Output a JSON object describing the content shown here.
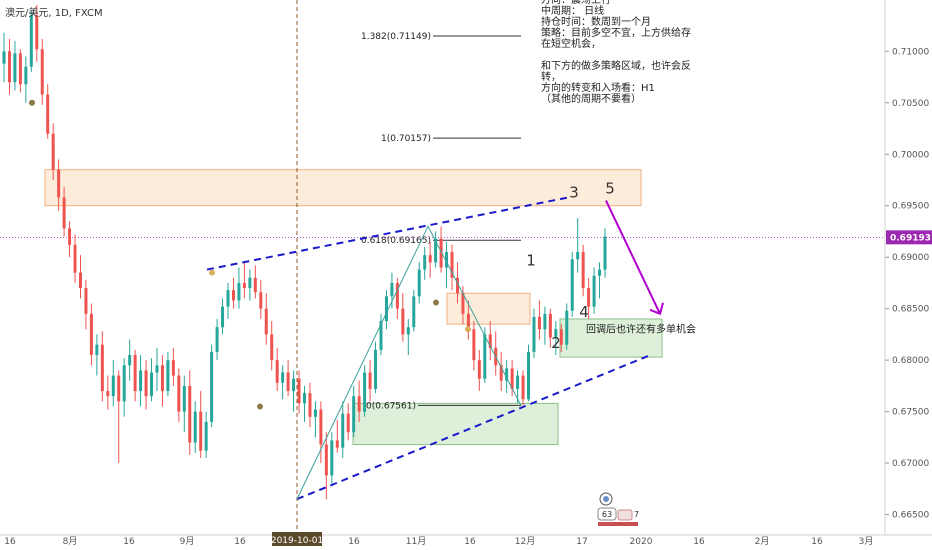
{
  "chart_data": {
    "type": "candlestick",
    "title": "澳元/美元, 1D, FXCM",
    "instrument": "AUD/USD",
    "timeframe": "1D",
    "source": "FXCM",
    "colors": {
      "up": "#26a69a",
      "down": "#ef5350",
      "price_line": "#9c27b0",
      "channel": "#1a1acc",
      "arrow": "#b000d0"
    },
    "ylim": [
      0.6635,
      0.7145
    ],
    "y_ticks": [
      "0.71000",
      "0.70500",
      "0.70000",
      "0.69500",
      "0.69000",
      "0.68500",
      "0.68000",
      "0.67500",
      "0.67000",
      "0.66500"
    ],
    "x_ticks": [
      "16",
      "8月",
      "16",
      "9月",
      "16",
      "2019-10-01",
      "16",
      "11月",
      "16",
      "12月",
      "17",
      "2020",
      "16",
      "2月",
      "16",
      "3月"
    ],
    "current_price": "0.69193",
    "fib_levels": [
      {
        "label": "1.382(0.71149)",
        "value": 0.71149
      },
      {
        "label": "1(0.70157)",
        "value": 0.70157
      },
      {
        "label": "0.618(0.69165)",
        "value": 0.69165
      },
      {
        "label": "0(0.67561)",
        "value": 0.67561
      }
    ],
    "wave_labels": [
      "1",
      "2",
      "3",
      "4",
      "5"
    ],
    "annotation_lines": [
      "方向：震荡上行",
      "中周期： 日线",
      "持仓时间：数周到一个月",
      "策略：目前多空不宜，上方供给存",
      "在短空机会，",
      "",
      "和下方的做多策略区域，也许会反",
      "转，",
      "方向的转变和入场看：H1",
      "（其他的周期不要看）"
    ],
    "zone_note": "回调后也许还有多单机会",
    "marker_badge": "63",
    "marker_count": "7",
    "candles": [
      [
        0.7088,
        0.7118,
        0.707,
        0.71
      ],
      [
        0.71,
        0.7112,
        0.7058,
        0.707
      ],
      [
        0.707,
        0.711,
        0.7062,
        0.7098
      ],
      [
        0.7098,
        0.7102,
        0.706,
        0.7068
      ],
      [
        0.7068,
        0.7095,
        0.705,
        0.7085
      ],
      [
        0.7085,
        0.714,
        0.708,
        0.7135
      ],
      [
        0.7135,
        0.7145,
        0.709,
        0.7102
      ],
      [
        0.7102,
        0.7112,
        0.7048,
        0.7058
      ],
      [
        0.7058,
        0.7068,
        0.7015,
        0.702
      ],
      [
        0.702,
        0.703,
        0.6975,
        0.6985
      ],
      [
        0.6985,
        0.6995,
        0.6945,
        0.6958
      ],
      [
        0.6958,
        0.6968,
        0.692,
        0.6928
      ],
      [
        0.6928,
        0.6935,
        0.69,
        0.6912
      ],
      [
        0.6912,
        0.6922,
        0.6875,
        0.6885
      ],
      [
        0.6885,
        0.6902,
        0.686,
        0.687
      ],
      [
        0.687,
        0.6878,
        0.683,
        0.6845
      ],
      [
        0.6845,
        0.6855,
        0.6795,
        0.6805
      ],
      [
        0.6805,
        0.6825,
        0.6785,
        0.6815
      ],
      [
        0.6815,
        0.6828,
        0.676,
        0.677
      ],
      [
        0.677,
        0.6785,
        0.6752,
        0.6765
      ],
      [
        0.6765,
        0.68,
        0.6755,
        0.6785
      ],
      [
        0.6785,
        0.679,
        0.67,
        0.676
      ],
      [
        0.676,
        0.6802,
        0.6745,
        0.6795
      ],
      [
        0.6795,
        0.682,
        0.678,
        0.6805
      ],
      [
        0.6805,
        0.681,
        0.676,
        0.677
      ],
      [
        0.677,
        0.6805,
        0.6755,
        0.679
      ],
      [
        0.679,
        0.68,
        0.6752,
        0.6765
      ],
      [
        0.6765,
        0.6802,
        0.676,
        0.6788
      ],
      [
        0.6788,
        0.6812,
        0.677,
        0.6795
      ],
      [
        0.6795,
        0.6805,
        0.6755,
        0.677
      ],
      [
        0.677,
        0.6808,
        0.6765,
        0.68
      ],
      [
        0.68,
        0.6812,
        0.6775,
        0.6785
      ],
      [
        0.6785,
        0.6792,
        0.674,
        0.675
      ],
      [
        0.675,
        0.6785,
        0.673,
        0.6775
      ],
      [
        0.6775,
        0.679,
        0.6708,
        0.672
      ],
      [
        0.672,
        0.676,
        0.671,
        0.675
      ],
      [
        0.675,
        0.677,
        0.6705,
        0.6712
      ],
      [
        0.6712,
        0.675,
        0.6705,
        0.674
      ],
      [
        0.674,
        0.6815,
        0.6735,
        0.6808
      ],
      [
        0.6808,
        0.684,
        0.68,
        0.6832
      ],
      [
        0.6832,
        0.686,
        0.6825,
        0.6852
      ],
      [
        0.6852,
        0.6875,
        0.684,
        0.6868
      ],
      [
        0.6868,
        0.688,
        0.685,
        0.6858
      ],
      [
        0.6858,
        0.689,
        0.685,
        0.6875
      ],
      [
        0.6875,
        0.6895,
        0.686,
        0.687
      ],
      [
        0.687,
        0.6888,
        0.6858,
        0.688
      ],
      [
        0.688,
        0.6892,
        0.686,
        0.6866
      ],
      [
        0.6866,
        0.6878,
        0.684,
        0.685
      ],
      [
        0.685,
        0.6865,
        0.6815,
        0.6825
      ],
      [
        0.6825,
        0.6838,
        0.679,
        0.68
      ],
      [
        0.68,
        0.6812,
        0.677,
        0.6778
      ],
      [
        0.6778,
        0.6795,
        0.6762,
        0.6788
      ],
      [
        0.6788,
        0.68,
        0.6765,
        0.677
      ],
      [
        0.677,
        0.679,
        0.675,
        0.6782
      ],
      [
        0.6782,
        0.679,
        0.6748,
        0.6758
      ],
      [
        0.6758,
        0.6775,
        0.674,
        0.6768
      ],
      [
        0.6768,
        0.6778,
        0.6735,
        0.6745
      ],
      [
        0.6745,
        0.676,
        0.6725,
        0.6752
      ],
      [
        0.6752,
        0.676,
        0.67,
        0.6718
      ],
      [
        0.6718,
        0.673,
        0.6665,
        0.6688
      ],
      [
        0.6688,
        0.673,
        0.668,
        0.6722
      ],
      [
        0.6722,
        0.6742,
        0.671,
        0.6715
      ],
      [
        0.6715,
        0.676,
        0.6705,
        0.6748
      ],
      [
        0.6748,
        0.6758,
        0.6722,
        0.673
      ],
      [
        0.673,
        0.6775,
        0.6725,
        0.6765
      ],
      [
        0.6765,
        0.678,
        0.674,
        0.675
      ],
      [
        0.675,
        0.6795,
        0.6745,
        0.6788
      ],
      [
        0.6788,
        0.68,
        0.676,
        0.6772
      ],
      [
        0.6772,
        0.6818,
        0.6768,
        0.681
      ],
      [
        0.681,
        0.6845,
        0.6805,
        0.6838
      ],
      [
        0.6838,
        0.6868,
        0.683,
        0.6862
      ],
      [
        0.6862,
        0.6885,
        0.685,
        0.6875
      ],
      [
        0.6875,
        0.688,
        0.684,
        0.685
      ],
      [
        0.685,
        0.6865,
        0.6818,
        0.6825
      ],
      [
        0.6825,
        0.684,
        0.6805,
        0.6832
      ],
      [
        0.6832,
        0.6868,
        0.6828,
        0.6862
      ],
      [
        0.6862,
        0.6895,
        0.6855,
        0.6888
      ],
      [
        0.6888,
        0.691,
        0.6878,
        0.6902
      ],
      [
        0.6902,
        0.6915,
        0.688,
        0.6895
      ],
      [
        0.6895,
        0.6925,
        0.689,
        0.6918
      ],
      [
        0.6918,
        0.693,
        0.6885,
        0.689
      ],
      [
        0.689,
        0.6915,
        0.687,
        0.6905
      ],
      [
        0.6905,
        0.6912,
        0.6868,
        0.688
      ],
      [
        0.688,
        0.6895,
        0.6855,
        0.6865
      ],
      [
        0.6865,
        0.6872,
        0.6835,
        0.6845
      ],
      [
        0.6845,
        0.6858,
        0.682,
        0.683
      ],
      [
        0.683,
        0.6838,
        0.679,
        0.68
      ],
      [
        0.68,
        0.681,
        0.677,
        0.6782
      ],
      [
        0.6782,
        0.6832,
        0.6778,
        0.6825
      ],
      [
        0.6825,
        0.6838,
        0.68,
        0.6812
      ],
      [
        0.6812,
        0.6828,
        0.6785,
        0.6795
      ],
      [
        0.6795,
        0.6808,
        0.677,
        0.678
      ],
      [
        0.678,
        0.68,
        0.6768,
        0.6792
      ],
      [
        0.6792,
        0.68,
        0.6765,
        0.6772
      ],
      [
        0.6772,
        0.679,
        0.6758,
        0.6785
      ],
      [
        0.6785,
        0.679,
        0.6756,
        0.6762
      ],
      [
        0.6762,
        0.6815,
        0.676,
        0.6808
      ],
      [
        0.6808,
        0.685,
        0.6802,
        0.6842
      ],
      [
        0.6842,
        0.6858,
        0.682,
        0.683
      ],
      [
        0.683,
        0.6852,
        0.6815,
        0.6845
      ],
      [
        0.6845,
        0.685,
        0.6812,
        0.6822
      ],
      [
        0.6822,
        0.6838,
        0.6805,
        0.683
      ],
      [
        0.683,
        0.6835,
        0.6808,
        0.6815
      ],
      [
        0.6815,
        0.6855,
        0.681,
        0.6848
      ],
      [
        0.6848,
        0.6905,
        0.6842,
        0.6898
      ],
      [
        0.6898,
        0.6938,
        0.6885,
        0.6905
      ],
      [
        0.6905,
        0.6912,
        0.6862,
        0.687
      ],
      [
        0.687,
        0.688,
        0.684,
        0.6852
      ],
      [
        0.6852,
        0.689,
        0.6845,
        0.6882
      ],
      [
        0.6882,
        0.6895,
        0.686,
        0.6888
      ],
      [
        0.6888,
        0.6928,
        0.688,
        0.692
      ]
    ]
  },
  "layout_hint": "Candles are equally spaced from the left edge to just past the '17' tick."
}
